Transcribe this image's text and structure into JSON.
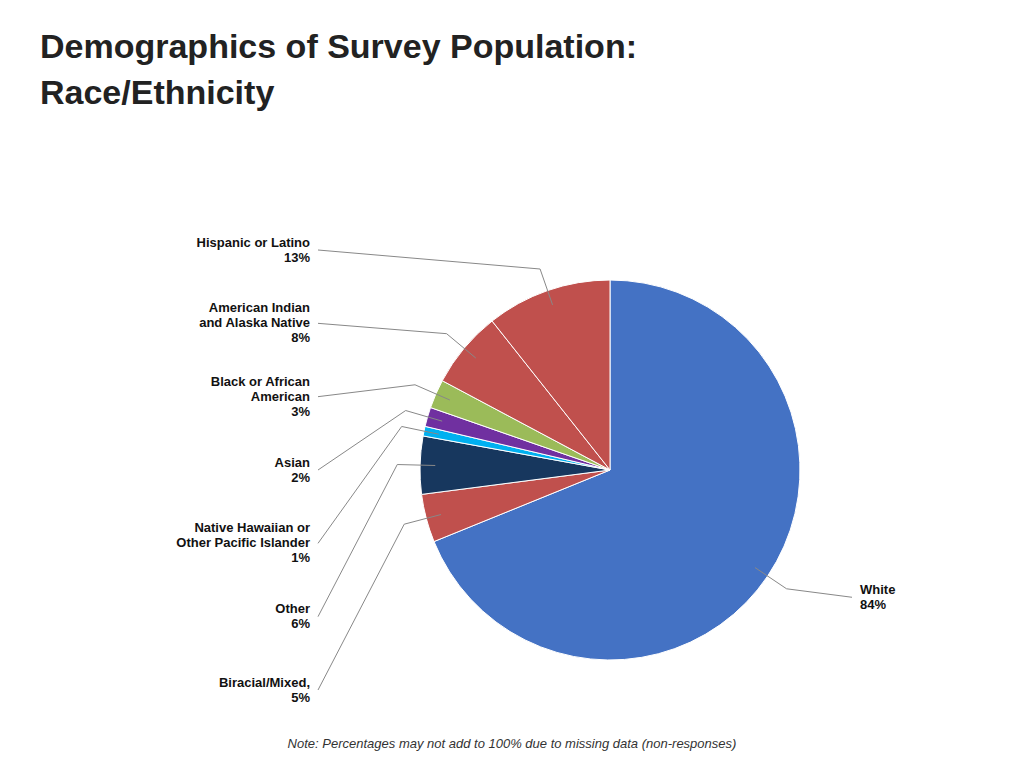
{
  "chart_data": {
    "type": "pie",
    "title": "Demographics of Survey Population:",
    "subtitle": "Race/Ethnicity",
    "annotations": [
      "Note: Percentages may not add to 100% due to missing data (non-responses)"
    ],
    "categories": [
      "White",
      "Biracial/Mixed,",
      "Other",
      "Native Hawaiian or\nOther Pacific Islander",
      "Asian",
      "Black or African\nAmerican",
      "American Indian\nand Alaska Native",
      "Hispanic or Latino"
    ],
    "values": [
      84,
      5,
      6,
      1,
      2,
      3,
      8,
      13
    ],
    "value_labels": [
      "84%",
      "5%",
      "6%",
      "1%",
      "2%",
      "3%",
      "8%",
      "13%"
    ],
    "colors": [
      "#4472C4",
      "#C0504D",
      "#17375E",
      "#00B0F0",
      "#7030A0",
      "#9BBB59",
      "#C0504D",
      "#C0504D"
    ],
    "data_labels": true
  }
}
